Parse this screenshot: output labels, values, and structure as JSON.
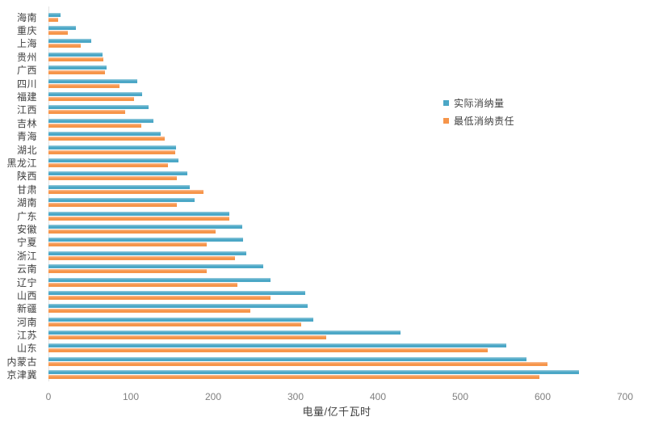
{
  "chart_data": {
    "type": "bar",
    "orientation": "horizontal",
    "title": "",
    "xlabel": "电量/亿千瓦时",
    "ylabel": "",
    "xlim": [
      0,
      700
    ],
    "x_ticks": [
      0,
      100,
      200,
      300,
      400,
      500,
      600,
      700
    ],
    "grid": false,
    "legend_position": "right-upper",
    "categories": [
      "海南",
      "重庆",
      "上海",
      "贵州",
      "广西",
      "四川",
      "福建",
      "江西",
      "吉林",
      "青海",
      "湖北",
      "黑龙江",
      "陕西",
      "甘肃",
      "湖南",
      "广东",
      "安徽",
      "宁夏",
      "浙江",
      "云南",
      "辽宁",
      "山西",
      "新疆",
      "河南",
      "江苏",
      "山东",
      "内蒙古",
      "京津冀"
    ],
    "series": [
      {
        "name": "实际消纳量",
        "color": "#4BA7C6",
        "color_light": "#8AC6D9",
        "values": [
          15,
          33,
          52,
          66,
          71,
          108,
          114,
          122,
          127,
          136,
          155,
          158,
          169,
          172,
          177,
          220,
          235,
          236,
          240,
          261,
          270,
          312,
          315,
          322,
          427,
          556,
          580,
          644
        ]
      },
      {
        "name": "最低消纳责任",
        "color": "#F6954A",
        "color_light": "#F9B687",
        "values": [
          12,
          24,
          39,
          67,
          69,
          86,
          104,
          93,
          113,
          141,
          154,
          145,
          156,
          188,
          156,
          220,
          203,
          192,
          226,
          192,
          229,
          270,
          245,
          307,
          337,
          533,
          606,
          596
        ]
      }
    ]
  }
}
